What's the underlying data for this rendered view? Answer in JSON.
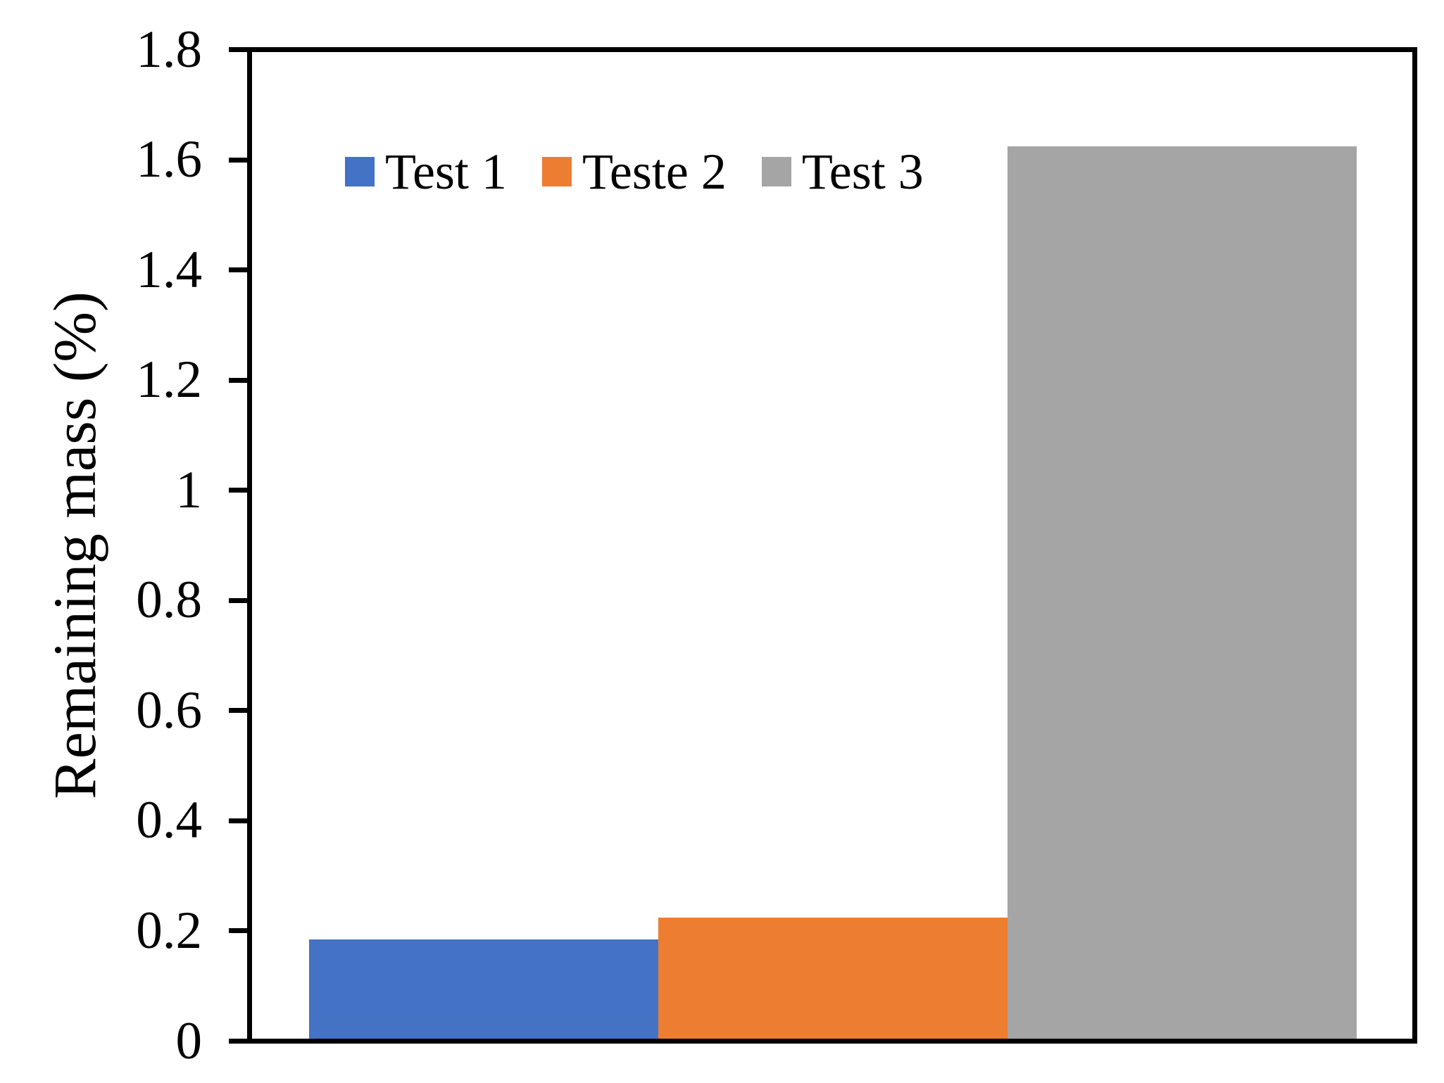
{
  "chart_data": {
    "type": "bar",
    "title": "",
    "xlabel": "",
    "ylabel": "Remaining mass (%)",
    "ylim": [
      0,
      1.8
    ],
    "ytick_step": 0.2,
    "ytick_labels": [
      "0",
      "0.2",
      "0.4",
      "0.6",
      "0.8",
      "1",
      "1.2",
      "1.4",
      "1.6",
      "1.8"
    ],
    "grid": false,
    "legend_position": "inside-top-left",
    "categories": [
      ""
    ],
    "series": [
      {
        "name": "Test 1",
        "color": "#4472C4",
        "values": [
          0.18
        ]
      },
      {
        "name": "Teste 2",
        "color": "#ED7D31",
        "values": [
          0.22
        ]
      },
      {
        "name": "Test 3",
        "color": "#A5A5A5",
        "values": [
          1.62
        ]
      }
    ],
    "axis_color": "#000000",
    "text_color": "#000000",
    "background_color": "#FFFFFF"
  }
}
